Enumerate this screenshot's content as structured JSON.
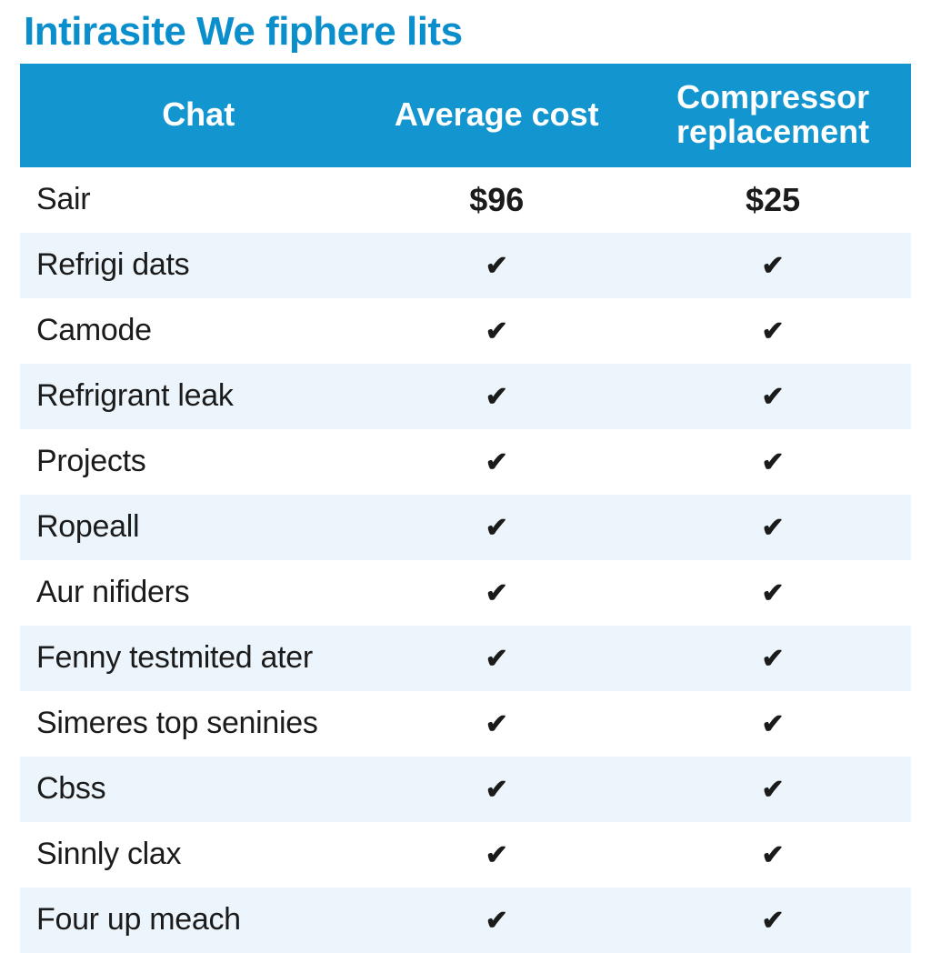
{
  "title": "Intirasite We fiphere lits",
  "title_color": "#0b8fcc",
  "header_bg": "#1395cf",
  "header_text_color": "#ffffff",
  "row_stripe_even": "#ffffff",
  "row_stripe_odd": "#ecf5fb",
  "check_color": "#1b1b1b",
  "price_row_text_color": "#1b1b1b",
  "columns": [
    "Chat",
    "Average cost",
    "Compressor replacement"
  ],
  "rows": [
    {
      "label": "Sair",
      "a": "$96",
      "b": "$25"
    },
    {
      "label": "Refrigi dats",
      "a": "check",
      "b": "check"
    },
    {
      "label": "Camode",
      "a": "check",
      "b": "check"
    },
    {
      "label": "Refrigrant leak",
      "a": "check",
      "b": "check"
    },
    {
      "label": "Projects",
      "a": "check",
      "b": "check"
    },
    {
      "label": "Ropeall",
      "a": "check",
      "b": "check"
    },
    {
      "label": "Aur nifiders",
      "a": "check",
      "b": "check"
    },
    {
      "label": "Fenny testmited ater",
      "a": "check",
      "b": "check"
    },
    {
      "label": "Simeres top seninies",
      "a": "check",
      "b": "check"
    },
    {
      "label": "Cbss",
      "a": "check",
      "b": "check"
    },
    {
      "label": "Sinnly clax",
      "a": "check",
      "b": "check"
    },
    {
      "label": "Four up meach",
      "a": "check",
      "b": "check"
    }
  ]
}
